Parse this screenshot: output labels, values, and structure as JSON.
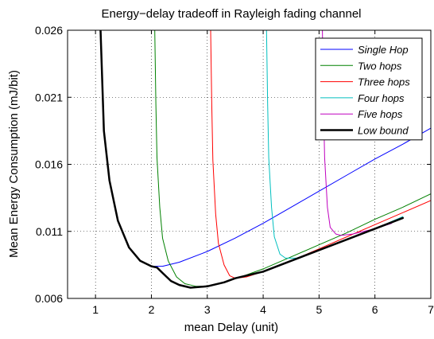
{
  "chart_data": {
    "type": "line",
    "title": "Energy−delay tradeoff in Rayleigh fading channel",
    "xlabel": "mean Delay (unit)",
    "ylabel": "Mean Energy Consumption (mJ/bit)",
    "xlim": [
      0.5,
      7
    ],
    "ylim": [
      0.006,
      0.026
    ],
    "xticks": [
      1,
      2,
      3,
      4,
      5,
      6,
      7
    ],
    "yticks": [
      0.006,
      0.011,
      0.016,
      0.021,
      0.026
    ],
    "ytick_labels": [
      "0.006",
      "0.011",
      "0.016",
      "0.021",
      "0.026"
    ],
    "grid": true,
    "grid_style": "dotted",
    "legend_position": "top-right",
    "series": [
      {
        "name": "Single Hop",
        "color": "#0000ff",
        "width": 1,
        "points": [
          [
            1.09,
            0.026
          ],
          [
            1.15,
            0.0185
          ],
          [
            1.25,
            0.0148
          ],
          [
            1.4,
            0.0118
          ],
          [
            1.6,
            0.0098
          ],
          [
            1.8,
            0.0088
          ],
          [
            2.0,
            0.0084
          ],
          [
            2.2,
            0.0084
          ],
          [
            2.5,
            0.0087
          ],
          [
            3.0,
            0.0095
          ],
          [
            3.5,
            0.0105
          ],
          [
            4.0,
            0.0116
          ],
          [
            4.5,
            0.0128
          ],
          [
            5.0,
            0.014
          ],
          [
            5.5,
            0.0152
          ],
          [
            6.0,
            0.0164
          ],
          [
            6.5,
            0.0175
          ],
          [
            7.0,
            0.0187
          ]
        ]
      },
      {
        "name": "Two hops",
        "color": "#008000",
        "width": 1,
        "points": [
          [
            2.06,
            0.026
          ],
          [
            2.08,
            0.0205
          ],
          [
            2.1,
            0.0165
          ],
          [
            2.15,
            0.0128
          ],
          [
            2.2,
            0.0105
          ],
          [
            2.3,
            0.0088
          ],
          [
            2.45,
            0.0076
          ],
          [
            2.6,
            0.0071
          ],
          [
            2.8,
            0.0069
          ],
          [
            3.0,
            0.0069
          ],
          [
            3.3,
            0.0072
          ],
          [
            3.6,
            0.0076
          ],
          [
            4.0,
            0.0082
          ],
          [
            4.5,
            0.0091
          ],
          [
            5.0,
            0.01
          ],
          [
            5.5,
            0.0109
          ],
          [
            6.0,
            0.0119
          ],
          [
            6.5,
            0.0128
          ],
          [
            7.0,
            0.0138
          ]
        ]
      },
      {
        "name": "Three hops",
        "color": "#ff0000",
        "width": 1,
        "points": [
          [
            3.06,
            0.026
          ],
          [
            3.08,
            0.0205
          ],
          [
            3.1,
            0.0163
          ],
          [
            3.15,
            0.0123
          ],
          [
            3.2,
            0.0101
          ],
          [
            3.3,
            0.0085
          ],
          [
            3.4,
            0.0077
          ],
          [
            3.5,
            0.0075
          ],
          [
            3.7,
            0.0076
          ],
          [
            4.0,
            0.008
          ],
          [
            4.5,
            0.0088
          ],
          [
            5.0,
            0.0097
          ],
          [
            5.5,
            0.0106
          ],
          [
            6.0,
            0.0115
          ],
          [
            6.5,
            0.0124
          ],
          [
            7.0,
            0.0133
          ]
        ]
      },
      {
        "name": "Four hops",
        "color": "#00bfbf",
        "width": 1,
        "points": [
          [
            4.06,
            0.026
          ],
          [
            4.08,
            0.0205
          ],
          [
            4.1,
            0.0165
          ],
          [
            4.15,
            0.0128
          ],
          [
            4.2,
            0.0106
          ],
          [
            4.3,
            0.0093
          ],
          [
            4.4,
            0.009
          ],
          [
            4.6,
            0.009
          ],
          [
            5.0,
            0.0096
          ],
          [
            5.5,
            0.0104
          ],
          [
            6.0,
            0.0112
          ],
          [
            6.5,
            0.0121
          ]
        ]
      },
      {
        "name": "Five hops",
        "color": "#bf00bf",
        "width": 1,
        "points": [
          [
            5.06,
            0.026
          ],
          [
            5.08,
            0.0205
          ],
          [
            5.1,
            0.0165
          ],
          [
            5.15,
            0.0128
          ],
          [
            5.2,
            0.0113
          ],
          [
            5.3,
            0.0108
          ],
          [
            5.4,
            0.0107
          ],
          [
            5.6,
            0.0108
          ],
          [
            6.0,
            0.0112
          ],
          [
            6.3,
            0.0116
          ]
        ]
      },
      {
        "name": "Low bound",
        "color": "#000000",
        "width": 2.5,
        "points": [
          [
            1.09,
            0.026
          ],
          [
            1.15,
            0.0185
          ],
          [
            1.25,
            0.0148
          ],
          [
            1.4,
            0.0118
          ],
          [
            1.6,
            0.0098
          ],
          [
            1.8,
            0.0088
          ],
          [
            2.0,
            0.0084
          ],
          [
            2.1,
            0.0083
          ],
          [
            2.2,
            0.0079
          ],
          [
            2.35,
            0.0073
          ],
          [
            2.5,
            0.007
          ],
          [
            2.7,
            0.0068
          ],
          [
            3.0,
            0.0069
          ],
          [
            3.3,
            0.0072
          ],
          [
            3.5,
            0.0075
          ],
          [
            4.0,
            0.008
          ],
          [
            4.5,
            0.0088
          ],
          [
            5.0,
            0.0096
          ],
          [
            5.5,
            0.0104
          ],
          [
            6.0,
            0.0112
          ],
          [
            6.5,
            0.012
          ]
        ]
      }
    ]
  }
}
